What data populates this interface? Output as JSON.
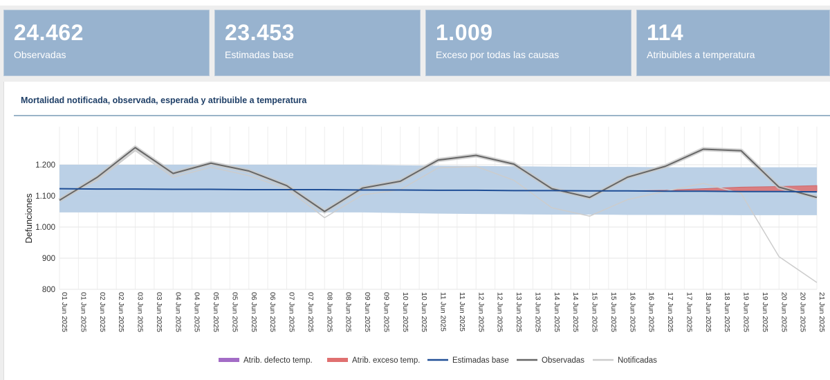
{
  "kpis": [
    {
      "value": "24.462",
      "label": "Observadas"
    },
    {
      "value": "23.453",
      "label": "Estimadas base"
    },
    {
      "value": "1.009",
      "label": "Exceso por todas las causas"
    },
    {
      "value": "114",
      "label": "Atribuibles a temperatura"
    }
  ],
  "panel": {
    "title": "Mortalidad notificada, observada, esperada y atribuible a temperatura"
  },
  "colors": {
    "band": "#b7cde5",
    "estimadas": "#1f4e96",
    "observadas": "#666666",
    "notificadas": "#cccccc",
    "exceso": "#e07070",
    "defecto": "#a36cc6"
  },
  "chart_data": {
    "type": "line",
    "ylabel": "Defunciones",
    "xlabel": "",
    "ylim": [
      800,
      1300
    ],
    "yticks": [
      800,
      900,
      1000,
      1100,
      1200
    ],
    "ytick_labels": [
      "800",
      "900",
      "1.000",
      "1.100",
      "1.200"
    ],
    "xtick_labels": [
      "01 Jun 2025",
      "01 Jun 2025",
      "02 Jun 2025",
      "02 Jun 2025",
      "03 Jun 2025",
      "03 Jun 2025",
      "04 Jun 2025",
      "04 Jun 2025",
      "05 Jun 2025",
      "05 Jun 2025",
      "06 Jun 2025",
      "06 Jun 2025",
      "07 Jun 2025",
      "07 Jun 2025",
      "08 Jun 2025",
      "08 Jun 2025",
      "09 Jun 2025",
      "09 Jun 2025",
      "10 Jun 2025",
      "10 Jun 2025",
      "11 Jun 2025",
      "11 Jun 2025",
      "12 Jun 2025",
      "12 Jun 2025",
      "13 Jun 2025",
      "13 Jun 2025",
      "14 Jun 2025",
      "14 Jun 2025",
      "15 Jun 2025",
      "15 Jun 2025",
      "16 Jun 2025",
      "16 Jun 2025",
      "17 Jun 2025",
      "17 Jun 2025",
      "18 Jun 2025",
      "18 Jun 2025",
      "19 Jun 2025",
      "19 Jun 2025",
      "20 Jun 2025",
      "20 Jun 2025",
      "21 Jun 2025"
    ],
    "x": [
      "01 Jun 2025",
      "02 Jun 2025",
      "03 Jun 2025",
      "04 Jun 2025",
      "05 Jun 2025",
      "06 Jun 2025",
      "07 Jun 2025",
      "08 Jun 2025",
      "09 Jun 2025",
      "10 Jun 2025",
      "11 Jun 2025",
      "12 Jun 2025",
      "13 Jun 2025",
      "14 Jun 2025",
      "15 Jun 2025",
      "16 Jun 2025",
      "17 Jun 2025",
      "18 Jun 2025",
      "19 Jun 2025",
      "20 Jun 2025",
      "21 Jun 2025"
    ],
    "series": [
      {
        "name": "Estimadas base",
        "values": [
          1123,
          1122,
          1122,
          1121,
          1121,
          1120,
          1120,
          1120,
          1119,
          1119,
          1118,
          1118,
          1117,
          1117,
          1116,
          1116,
          1115,
          1115,
          1114,
          1114,
          1113
        ]
      },
      {
        "name": "Observadas",
        "values": [
          1086,
          1160,
          1255,
          1172,
          1205,
          1180,
          1133,
          1050,
          1125,
          1147,
          1215,
          1230,
          1202,
          1123,
          1095,
          1160,
          1195,
          1250,
          1245,
          1128,
          1095
        ]
      },
      {
        "name": "Notificadas",
        "values": [
          1090,
          1150,
          1245,
          1160,
          1192,
          1165,
          1123,
          1030,
          1103,
          1120,
          1190,
          1195,
          1150,
          1062,
          1035,
          1088,
          1115,
          1140,
          1108,
          905,
          822
        ]
      },
      {
        "name": "Atrib. exceso temp.",
        "values": [
          0,
          0,
          0,
          0,
          0,
          0,
          0,
          0,
          0,
          0,
          0,
          0,
          0,
          0,
          0,
          0,
          3,
          8,
          14,
          16,
          20
        ]
      },
      {
        "name": "Atrib. defecto temp.",
        "values": [
          0,
          0,
          0,
          0,
          0,
          0,
          0,
          0,
          0,
          0,
          0,
          0,
          0,
          0,
          0,
          0,
          0,
          0,
          0,
          0,
          0
        ]
      }
    ],
    "band": {
      "lower": [
        1047,
        1047,
        1047,
        1047,
        1047,
        1047,
        1047,
        1047,
        1047,
        1045,
        1043,
        1042,
        1041,
        1040,
        1040,
        1039,
        1039,
        1039,
        1038,
        1038,
        1038
      ],
      "upper": [
        1200,
        1200,
        1200,
        1200,
        1200,
        1200,
        1200,
        1200,
        1200,
        1198,
        1197,
        1196,
        1195,
        1194,
        1193,
        1193,
        1192,
        1192,
        1192,
        1192,
        1192
      ]
    },
    "legend_position": "bottom",
    "grid": true
  }
}
